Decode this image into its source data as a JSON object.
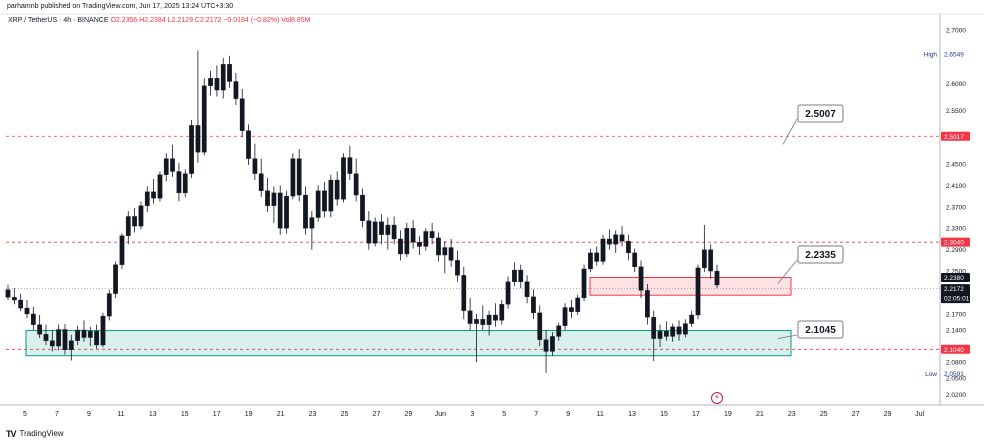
{
  "header": {
    "published_text": "parhamnb published on TradingView.com, Jun 17, 2025 13:24 UTC+3:30",
    "symbol": "XRP / TetherUS · 4h · BINANCE",
    "ohlc": "O2.2356  H2.2384  L2.2129  C2.2172  −0.0184 (−0.82%)  Vol8.85M"
  },
  "footer": {
    "logo_text": "TV",
    "brand": "TradingView"
  },
  "colors": {
    "up": "#089981",
    "down": "#f23645",
    "dashed": "#f23645",
    "supply_fill": "rgba(242,54,69,0.15)",
    "demand_fill": "rgba(8,153,129,0.15)"
  },
  "chart_data": {
    "type": "candlestick",
    "symbol": "XRP/USDT",
    "timeframe": "4h",
    "ylim": [
      2.0,
      2.73
    ],
    "x_tick_labels": [
      "5",
      "7",
      "9",
      "11",
      "13",
      "15",
      "17",
      "19",
      "21",
      "23",
      "25",
      "27",
      "29",
      "Jun",
      "3",
      "5",
      "7",
      "9",
      "11",
      "13",
      "15",
      "17",
      "19",
      "21",
      "23",
      "25",
      "27",
      "29",
      "Jul"
    ],
    "y_tick_labels": [
      "2.7000",
      "2.6000",
      "2.5500",
      "2.4500",
      "2.4100",
      "2.3700",
      "2.3300",
      "2.2900",
      "2.2500",
      "2.1700",
      "2.1400",
      "2.0800",
      "2.0500",
      "2.0200"
    ],
    "y_tick_values": [
      2.7,
      2.6,
      2.55,
      2.45,
      2.41,
      2.37,
      2.33,
      2.29,
      2.25,
      2.17,
      2.14,
      2.08,
      2.05,
      2.02
    ],
    "key_levels": [
      2.5017,
      2.304,
      2.104
    ],
    "price_labels": [
      {
        "text": "2.6549",
        "value": 2.6549,
        "tag": "High",
        "style": "plain"
      },
      {
        "text": "2.5017",
        "value": 2.5017,
        "style": "red"
      },
      {
        "text": "2.3040",
        "value": 2.304,
        "style": "red"
      },
      {
        "text": "2.2380",
        "value": 2.238,
        "style": "dark"
      },
      {
        "text": "2.2172",
        "value": 2.2172,
        "style": "dark",
        "sub": "02:05:01"
      },
      {
        "text": "2.1040",
        "value": 2.104,
        "style": "red"
      },
      {
        "text": "2.0591",
        "value": 2.0591,
        "tag": "Low",
        "style": "plain"
      }
    ],
    "callouts": [
      "2.5007",
      "2.2335",
      "2.1045"
    ],
    "zones": [
      {
        "name": "supply",
        "from": 2.205,
        "to": 2.238
      },
      {
        "name": "demand",
        "from": 2.092,
        "to": 2.139
      }
    ],
    "candles": [
      [
        2.215,
        2.225,
        2.196,
        2.201
      ],
      [
        2.201,
        2.218,
        2.188,
        2.196
      ],
      [
        2.196,
        2.208,
        2.175,
        2.181
      ],
      [
        2.181,
        2.196,
        2.162,
        2.17
      ],
      [
        2.17,
        2.183,
        2.14,
        2.15
      ],
      [
        2.15,
        2.168,
        2.125,
        2.132
      ],
      [
        2.132,
        2.15,
        2.112,
        2.12
      ],
      [
        2.12,
        2.14,
        2.1,
        2.11
      ],
      [
        2.11,
        2.15,
        2.102,
        2.141
      ],
      [
        2.141,
        2.151,
        2.094,
        2.103
      ],
      [
        2.103,
        2.131,
        2.083,
        2.12
      ],
      [
        2.12,
        2.148,
        2.112,
        2.14
      ],
      [
        2.14,
        2.158,
        2.118,
        2.126
      ],
      [
        2.126,
        2.146,
        2.11,
        2.138
      ],
      [
        2.138,
        2.15,
        2.105,
        2.112
      ],
      [
        2.112,
        2.172,
        2.108,
        2.166
      ],
      [
        2.166,
        2.215,
        2.158,
        2.208
      ],
      [
        2.208,
        2.268,
        2.2,
        2.262
      ],
      [
        2.262,
        2.32,
        2.254,
        2.316
      ],
      [
        2.316,
        2.362,
        2.3,
        2.352
      ],
      [
        2.352,
        2.368,
        2.322,
        2.334
      ],
      [
        2.334,
        2.38,
        2.328,
        2.372
      ],
      [
        2.372,
        2.408,
        2.36,
        2.398
      ],
      [
        2.398,
        2.422,
        2.376,
        2.386
      ],
      [
        2.386,
        2.436,
        2.38,
        2.43
      ],
      [
        2.43,
        2.47,
        2.418,
        2.46
      ],
      [
        2.46,
        2.486,
        2.426,
        2.436
      ],
      [
        2.436,
        2.452,
        2.38,
        2.396
      ],
      [
        2.396,
        2.44,
        2.388,
        2.432
      ],
      [
        2.432,
        2.532,
        2.424,
        2.522
      ],
      [
        2.522,
        2.662,
        2.452,
        2.472
      ],
      [
        2.472,
        2.61,
        2.466,
        2.596
      ],
      [
        2.596,
        2.624,
        2.578,
        2.61
      ],
      [
        2.61,
        2.634,
        2.576,
        2.588
      ],
      [
        2.588,
        2.648,
        2.572,
        2.636
      ],
      [
        2.636,
        2.652,
        2.592,
        2.604
      ],
      [
        2.604,
        2.62,
        2.56,
        2.572
      ],
      [
        2.572,
        2.59,
        2.5,
        2.512
      ],
      [
        2.512,
        2.524,
        2.448,
        2.46
      ],
      [
        2.46,
        2.488,
        2.42,
        2.432
      ],
      [
        2.432,
        2.46,
        2.388,
        2.4
      ],
      [
        2.4,
        2.424,
        2.36,
        2.372
      ],
      [
        2.372,
        2.408,
        2.34,
        2.396
      ],
      [
        2.396,
        2.41,
        2.318,
        2.33
      ],
      [
        2.33,
        2.4,
        2.32,
        2.39
      ],
      [
        2.39,
        2.47,
        2.384,
        2.46
      ],
      [
        2.46,
        2.478,
        2.38,
        2.392
      ],
      [
        2.392,
        2.408,
        2.318,
        2.33
      ],
      [
        2.33,
        2.362,
        2.29,
        2.35
      ],
      [
        2.35,
        2.41,
        2.342,
        2.4
      ],
      [
        2.4,
        2.416,
        2.35,
        2.362
      ],
      [
        2.362,
        2.43,
        2.35,
        2.42
      ],
      [
        2.42,
        2.436,
        2.372,
        2.384
      ],
      [
        2.384,
        2.47,
        2.378,
        2.462
      ],
      [
        2.462,
        2.484,
        2.42,
        2.432
      ],
      [
        2.432,
        2.46,
        2.38,
        2.392
      ],
      [
        2.392,
        2.404,
        2.332,
        2.344
      ],
      [
        2.344,
        2.362,
        2.29,
        2.302
      ],
      [
        2.302,
        2.35,
        2.296,
        2.342
      ],
      [
        2.342,
        2.356,
        2.3,
        2.318
      ],
      [
        2.318,
        2.35,
        2.29,
        2.336
      ],
      [
        2.336,
        2.352,
        2.3,
        2.31
      ],
      [
        2.31,
        2.326,
        2.27,
        2.282
      ],
      [
        2.282,
        2.34,
        2.276,
        2.33
      ],
      [
        2.33,
        2.346,
        2.292,
        2.304
      ],
      [
        2.304,
        2.316,
        2.28,
        2.296
      ],
      [
        2.296,
        2.33,
        2.288,
        2.324
      ],
      [
        2.324,
        2.34,
        2.3,
        2.312
      ],
      [
        2.312,
        2.322,
        2.268,
        2.28
      ],
      [
        2.28,
        2.306,
        2.246,
        2.294
      ],
      [
        2.294,
        2.31,
        2.258,
        2.27
      ],
      [
        2.27,
        2.288,
        2.23,
        2.242
      ],
      [
        2.242,
        2.258,
        2.16,
        2.176
      ],
      [
        2.176,
        2.2,
        2.14,
        2.152
      ],
      [
        2.152,
        2.17,
        2.08,
        2.16
      ],
      [
        2.16,
        2.186,
        2.14,
        2.15
      ],
      [
        2.15,
        2.176,
        2.13,
        2.168
      ],
      [
        2.168,
        2.19,
        2.146,
        2.158
      ],
      [
        2.158,
        2.196,
        2.15,
        2.188
      ],
      [
        2.188,
        2.24,
        2.18,
        2.23
      ],
      [
        2.23,
        2.266,
        2.222,
        2.252
      ],
      [
        2.252,
        2.262,
        2.218,
        2.23
      ],
      [
        2.23,
        2.242,
        2.19,
        2.202
      ],
      [
        2.202,
        2.216,
        2.16,
        2.172
      ],
      [
        2.172,
        2.186,
        2.11,
        2.122
      ],
      [
        2.122,
        2.14,
        2.06,
        2.1
      ],
      [
        2.1,
        2.136,
        2.092,
        2.128
      ],
      [
        2.128,
        2.154,
        2.12,
        2.148
      ],
      [
        2.148,
        2.19,
        2.14,
        2.182
      ],
      [
        2.182,
        2.196,
        2.162,
        2.174
      ],
      [
        2.174,
        2.206,
        2.168,
        2.2
      ],
      [
        2.2,
        2.262,
        2.194,
        2.254
      ],
      [
        2.254,
        2.292,
        2.248,
        2.284
      ],
      [
        2.284,
        2.296,
        2.26,
        2.268
      ],
      [
        2.268,
        2.318,
        2.262,
        2.31
      ],
      [
        2.31,
        2.328,
        2.29,
        2.3
      ],
      [
        2.3,
        2.326,
        2.284,
        2.318
      ],
      [
        2.318,
        2.334,
        2.296,
        2.306
      ],
      [
        2.306,
        2.318,
        2.27,
        2.284
      ],
      [
        2.284,
        2.292,
        2.248,
        2.258
      ],
      [
        2.258,
        2.27,
        2.2,
        2.214
      ],
      [
        2.214,
        2.226,
        2.15,
        2.164
      ],
      [
        2.164,
        2.176,
        2.082,
        2.124
      ],
      [
        2.124,
        2.15,
        2.108,
        2.138
      ],
      [
        2.138,
        2.156,
        2.12,
        2.128
      ],
      [
        2.128,
        2.152,
        2.118,
        2.146
      ],
      [
        2.146,
        2.158,
        2.12,
        2.132
      ],
      [
        2.132,
        2.16,
        2.126,
        2.152
      ],
      [
        2.152,
        2.176,
        2.146,
        2.168
      ],
      [
        2.168,
        2.262,
        2.16,
        2.256
      ],
      [
        2.256,
        2.336,
        2.248,
        2.29
      ],
      [
        2.29,
        2.3,
        2.236,
        2.25
      ],
      [
        2.25,
        2.262,
        2.218,
        2.224
      ]
    ]
  }
}
